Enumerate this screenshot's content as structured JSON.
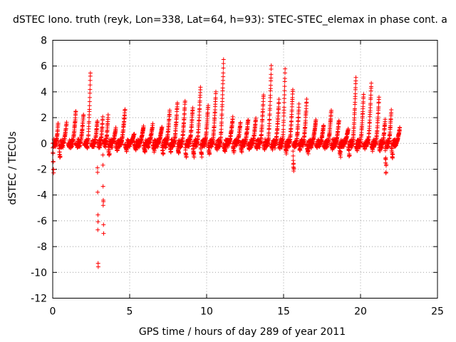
{
  "chart_data": {
    "type": "scatter",
    "title": "dSTEC Iono. truth (reyk, Lon=338, Lat=64, h=93): STEC-STEC_elemax in phase cont. a",
    "xlabel": "GPS time / hours of day 289 of year 2011",
    "ylabel": "dSTEC  / TECUs",
    "xlim": [
      0,
      25
    ],
    "ylim": [
      -12,
      8
    ],
    "xticks": [
      0,
      5,
      10,
      15,
      20,
      25
    ],
    "yticks": [
      -12,
      -10,
      -8,
      -6,
      -4,
      -2,
      0,
      2,
      4,
      6,
      8
    ],
    "xtick_labels": [
      "0",
      "5",
      "10",
      "15",
      "20",
      "25"
    ],
    "ytick_labels": [
      "-12",
      "-10",
      "-8",
      "-6",
      "-4",
      "-2",
      "0",
      "2",
      "4",
      "6",
      "8"
    ],
    "grid": true,
    "marker": "plus",
    "color": "#ff0000",
    "arcs": [
      {
        "x0": 0.0,
        "x1": 0.35,
        "peak": 1.5,
        "trough": -2.6
      },
      {
        "x0": 0.4,
        "x1": 0.9,
        "peak": 1.6,
        "trough": -1.2
      },
      {
        "x0": 1.0,
        "x1": 1.5,
        "peak": 2.5,
        "trough": -0.3
      },
      {
        "x0": 1.5,
        "x1": 2.0,
        "peak": 2.3,
        "trough": -0.2
      },
      {
        "x0": 2.05,
        "x1": 2.45,
        "peak": 5.5,
        "trough": -0.2
      },
      {
        "x0": 2.5,
        "x1": 2.9,
        "peak": 1.8,
        "trough": -0.3
      },
      {
        "x0": 2.9,
        "x1": 3.25,
        "peak": 2.0,
        "trough": -10.5
      },
      {
        "x0": 3.25,
        "x1": 3.6,
        "peak": 2.2,
        "trough": -7.8
      },
      {
        "x0": 3.6,
        "x1": 4.1,
        "peak": 1.2,
        "trough": -1.1
      },
      {
        "x0": 4.1,
        "x1": 4.7,
        "peak": 2.7,
        "trough": -0.6
      },
      {
        "x0": 4.7,
        "x1": 5.3,
        "peak": 0.8,
        "trough": -0.7
      },
      {
        "x0": 5.3,
        "x1": 5.9,
        "peak": 1.3,
        "trough": -0.6
      },
      {
        "x0": 5.9,
        "x1": 6.5,
        "peak": 1.5,
        "trough": -0.8
      },
      {
        "x0": 6.5,
        "x1": 7.1,
        "peak": 1.3,
        "trough": -0.7
      },
      {
        "x0": 7.1,
        "x1": 7.6,
        "peak": 2.5,
        "trough": -0.9
      },
      {
        "x0": 7.6,
        "x1": 8.1,
        "peak": 3.2,
        "trough": -0.8
      },
      {
        "x0": 8.1,
        "x1": 8.6,
        "peak": 3.3,
        "trough": -0.9
      },
      {
        "x0": 8.6,
        "x1": 9.1,
        "peak": 2.8,
        "trough": -1.4
      },
      {
        "x0": 9.1,
        "x1": 9.6,
        "peak": 4.4,
        "trough": -1.2
      },
      {
        "x0": 9.6,
        "x1": 10.1,
        "peak": 3.0,
        "trough": -1.0
      },
      {
        "x0": 10.1,
        "x1": 10.6,
        "peak": 4.0,
        "trough": -0.9
      },
      {
        "x0": 10.6,
        "x1": 11.1,
        "peak": 6.5,
        "trough": -0.5
      },
      {
        "x0": 11.1,
        "x1": 11.7,
        "peak": 2.0,
        "trough": -0.7
      },
      {
        "x0": 11.7,
        "x1": 12.2,
        "peak": 1.6,
        "trough": -0.8
      },
      {
        "x0": 12.2,
        "x1": 12.7,
        "peak": 1.9,
        "trough": -0.7
      },
      {
        "x0": 12.7,
        "x1": 13.2,
        "peak": 2.0,
        "trough": -0.6
      },
      {
        "x0": 13.2,
        "x1": 13.7,
        "peak": 3.8,
        "trough": -0.5
      },
      {
        "x0": 13.7,
        "x1": 14.2,
        "peak": 6.0,
        "trough": -0.6
      },
      {
        "x0": 14.2,
        "x1": 14.7,
        "peak": 3.4,
        "trough": -0.5
      },
      {
        "x0": 14.7,
        "x1": 15.1,
        "peak": 5.8,
        "trough": -0.4
      },
      {
        "x0": 15.1,
        "x1": 15.6,
        "peak": 4.2,
        "trough": -0.9
      },
      {
        "x0": 15.6,
        "x1": 16.0,
        "peak": 3.0,
        "trough": -2.4
      },
      {
        "x0": 16.0,
        "x1": 16.5,
        "peak": 3.4,
        "trough": -0.6
      },
      {
        "x0": 16.5,
        "x1": 17.1,
        "peak": 1.8,
        "trough": -0.8
      },
      {
        "x0": 17.1,
        "x1": 17.6,
        "peak": 1.4,
        "trough": -0.3
      },
      {
        "x0": 17.6,
        "x1": 18.1,
        "peak": 2.6,
        "trough": -0.4
      },
      {
        "x0": 18.1,
        "x1": 18.6,
        "peak": 1.8,
        "trough": -0.5
      },
      {
        "x0": 18.6,
        "x1": 19.2,
        "peak": 1.1,
        "trough": -1.1
      },
      {
        "x0": 19.2,
        "x1": 19.7,
        "peak": 5.1,
        "trough": -1.2
      },
      {
        "x0": 19.7,
        "x1": 20.2,
        "peak": 3.8,
        "trough": -0.6
      },
      {
        "x0": 20.2,
        "x1": 20.7,
        "peak": 4.7,
        "trough": -0.4
      },
      {
        "x0": 20.7,
        "x1": 21.2,
        "peak": 3.6,
        "trough": -0.6
      },
      {
        "x0": 21.2,
        "x1": 21.6,
        "peak": 1.8,
        "trough": -0.8
      },
      {
        "x0": 21.6,
        "x1": 22.0,
        "peak": 2.6,
        "trough": -2.7
      },
      {
        "x0": 22.0,
        "x1": 22.55,
        "peak": 1.2,
        "trough": -1.3
      }
    ]
  }
}
